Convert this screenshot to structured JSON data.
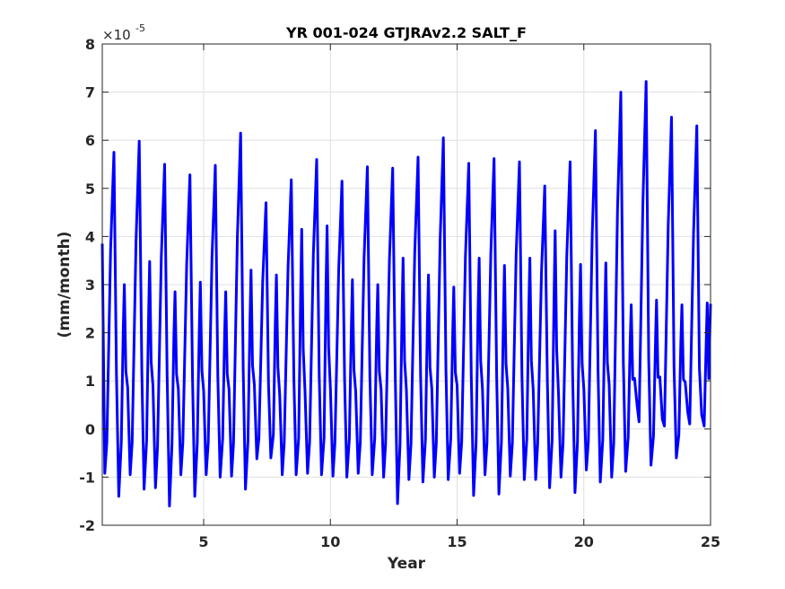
{
  "chart_data": {
    "type": "line",
    "title": "YR 001-024 GTJRAv2.2 SALT_F",
    "xlabel": "Year",
    "ylabel": "(mm/month)",
    "y_multiplier_base": "×10",
    "y_multiplier_exponent": "-5",
    "xlim": [
      1,
      25
    ],
    "ylim": [
      -2,
      8
    ],
    "xticks": [
      5,
      10,
      15,
      20,
      25
    ],
    "yticks": [
      -2,
      -1,
      0,
      1,
      2,
      3,
      4,
      5,
      6,
      7,
      8
    ],
    "grid": true,
    "line_color": "#0000ff",
    "series": [
      {
        "annual_peaks": [
          5.75,
          5.98,
          5.5,
          5.28,
          5.48,
          6.15,
          4.7,
          5.18,
          5.6,
          5.15,
          5.45,
          5.42,
          5.65,
          6.05,
          5.52,
          5.62,
          5.55,
          5.05,
          5.55,
          6.2,
          7.0,
          7.22,
          6.48,
          6.3
        ],
        "secondary_peaks": [
          3.0,
          3.48,
          2.85,
          3.05,
          2.85,
          3.3,
          3.2,
          4.15,
          4.22,
          3.1,
          3.0,
          3.55,
          3.2,
          2.95,
          3.55,
          3.4,
          3.55,
          4.12,
          3.42,
          3.45,
          2.58,
          2.68,
          2.58,
          2.62
        ],
        "annual_minima": [
          -1.4,
          -1.25,
          -1.6,
          -1.4,
          -1.0,
          -1.25,
          -0.6,
          -0.95,
          -0.95,
          -1.0,
          -0.95,
          -1.55,
          -1.1,
          -1.05,
          -1.38,
          -1.35,
          -1.05,
          -1.22,
          -1.32,
          -1.1,
          -0.88,
          -0.75,
          -0.6,
          0.3
        ],
        "secondary_minima": [
          -0.92,
          -0.95,
          -1.22,
          -0.95,
          -0.95,
          -0.98,
          -0.62,
          -0.95,
          -0.92,
          -0.98,
          -0.92,
          -1.0,
          -1.05,
          -1.0,
          -0.92,
          -0.95,
          -0.98,
          -1.05,
          -1.0,
          -0.85,
          -1.0,
          0.5,
          0.2,
          0.35
        ],
        "start_value": 3.85,
        "end_value": 2.6
      }
    ]
  }
}
